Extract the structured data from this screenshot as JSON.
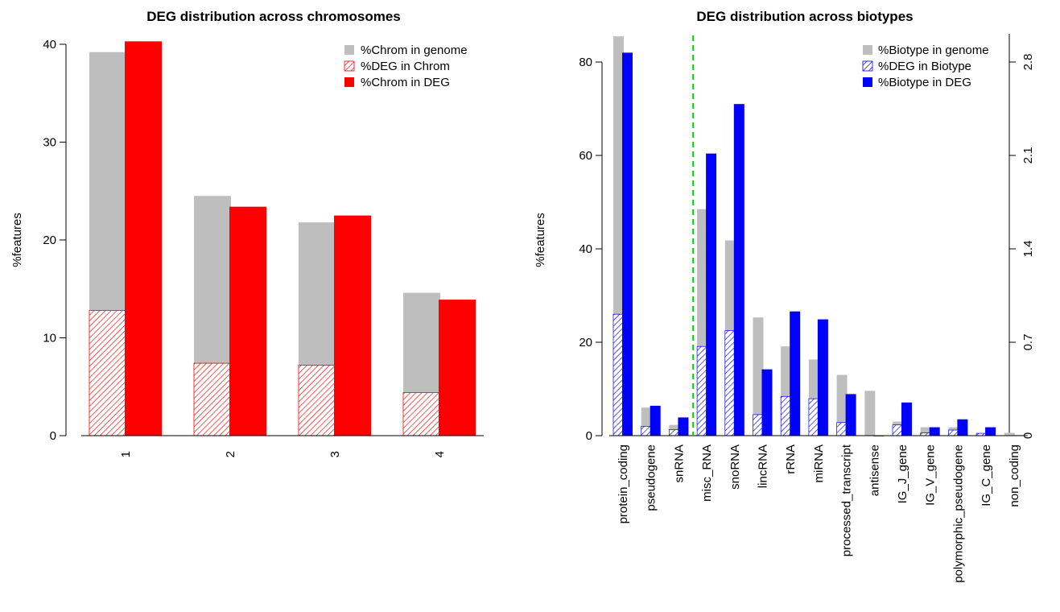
{
  "chart_data": [
    {
      "type": "bar",
      "title": "DEG distribution across chromosomes",
      "xlabel": "",
      "ylabel": "%features",
      "ylim": [
        0,
        40
      ],
      "yticks": [
        0,
        10,
        20,
        30,
        40
      ],
      "grid": false,
      "legend_position": "top-right",
      "categories": [
        "1",
        "2",
        "3",
        "4"
      ],
      "series": [
        {
          "name": "%Chrom in genome",
          "color": "#bebebe",
          "style": "solid",
          "values": [
            39.2,
            24.5,
            21.8,
            14.6
          ]
        },
        {
          "name": "%DEG in Chrom",
          "color": "#ff0000",
          "style": "hatched",
          "values": [
            12.8,
            7.4,
            7.2,
            4.4
          ]
        },
        {
          "name": "%Chrom in DEG",
          "color": "#ff0000",
          "style": "solid",
          "values": [
            40.3,
            23.4,
            22.5,
            13.9
          ]
        }
      ]
    },
    {
      "type": "bar",
      "title": "DEG distribution across biotypes",
      "xlabel": "",
      "ylabel": "%features",
      "ylim": [
        0,
        85
      ],
      "yticks": [
        0,
        20,
        40,
        60,
        80
      ],
      "y2ticks": [
        "0",
        "0.7",
        "1.4",
        "2.1",
        "2.8"
      ],
      "y2scale_max": 2.8,
      "grid": false,
      "legend_position": "top-right",
      "separator_after_index": 2,
      "separator_color": "#00cd00",
      "categories": [
        "protein_coding",
        "pseudogene",
        "snRNA",
        "misc_RNA",
        "snoRNA",
        "lincRNA",
        "rRNA",
        "miRNA",
        "processed_transcript",
        "antisense",
        "IG_J_gene",
        "IG_V_gene",
        "polymorphic_pseudogene",
        "IG_C_gene",
        "non_coding"
      ],
      "series": [
        {
          "name": "%Biotype in genome",
          "color": "#bebebe",
          "style": "solid",
          "values": [
            85.5,
            6.0,
            2.3,
            48.5,
            41.8,
            25.3,
            19.1,
            16.3,
            13.0,
            9.6,
            3.0,
            1.8,
            1.8,
            0.5,
            0.6
          ]
        },
        {
          "name": "%DEG in Biotype",
          "color": "#0000ff",
          "style": "hatched",
          "values": [
            26.0,
            2.0,
            1.3,
            19.1,
            22.5,
            4.5,
            8.4,
            7.9,
            2.8,
            0.0,
            2.3,
            0.6,
            1.2,
            0.5,
            0.0
          ]
        },
        {
          "name": "%Biotype in DEG",
          "color": "#0000ff",
          "style": "solid",
          "values": [
            82.0,
            6.4,
            3.9,
            60.4,
            71.0,
            14.2,
            26.6,
            24.9,
            8.9,
            0.0,
            7.1,
            1.8,
            3.5,
            1.8,
            0.1
          ]
        }
      ]
    }
  ]
}
